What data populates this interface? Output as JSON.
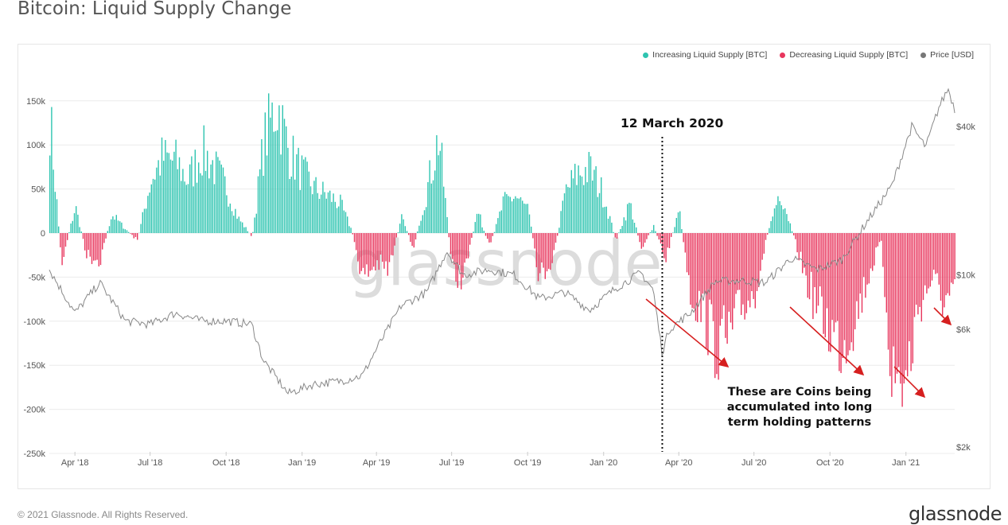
{
  "page": {
    "title": "Bitcoin: Liquid Supply Change",
    "footer_left": "© 2021 Glassnode. All Rights Reserved.",
    "footer_right": "glassnode"
  },
  "chart_data": {
    "type": "bar",
    "title": "Bitcoin: Liquid Supply Change",
    "watermark": "glassnode",
    "grid": true,
    "legend_position": "top-right",
    "legend": [
      {
        "label": "Increasing Liquid Supply [BTC]",
        "color": "#2ec4b0"
      },
      {
        "label": "Decreasing Liquid Supply [BTC]",
        "color": "#e8365d"
      },
      {
        "label": "Price [USD]",
        "color": "#777777"
      }
    ],
    "x_ticks": [
      "Apr '18",
      "Jul '18",
      "Oct '18",
      "Jan '19",
      "Apr '19",
      "Jul '19",
      "Oct '19",
      "Jan '20",
      "Apr '20",
      "Jul '20",
      "Oct '20",
      "Jan '21"
    ],
    "y_left": {
      "ticks": [
        "150k",
        "100k",
        "50k",
        "0",
        "-50k",
        "-100k",
        "-150k",
        "-200k",
        "-250k"
      ],
      "tick_values": [
        150000,
        100000,
        50000,
        0,
        -50000,
        -100000,
        -150000,
        -200000,
        -250000
      ],
      "range": [
        -250000,
        175000
      ]
    },
    "y_right": {
      "ticks": [
        "$40k",
        "$10k",
        "$6k",
        "$2k"
      ],
      "tick_values": [
        40000,
        10000,
        6000,
        2000
      ],
      "scale": "log"
    },
    "series": [
      {
        "name": "Liquid Supply Change [BTC]",
        "type": "bar",
        "positive_color": "#2ec4b0",
        "negative_color": "#e8365d",
        "x": [
          "2018-03-01",
          "2018-03-15",
          "2018-04-01",
          "2018-04-15",
          "2018-05-01",
          "2018-05-15",
          "2018-06-01",
          "2018-06-15",
          "2018-07-01",
          "2018-07-15",
          "2018-08-01",
          "2018-08-15",
          "2018-09-01",
          "2018-09-15",
          "2018-10-01",
          "2018-10-15",
          "2018-11-01",
          "2018-11-15",
          "2018-12-01",
          "2018-12-15",
          "2019-01-01",
          "2019-01-15",
          "2019-02-01",
          "2019-02-15",
          "2019-03-01",
          "2019-03-15",
          "2019-04-01",
          "2019-04-15",
          "2019-05-01",
          "2019-05-15",
          "2019-06-01",
          "2019-06-15",
          "2019-07-01",
          "2019-07-15",
          "2019-08-01",
          "2019-08-15",
          "2019-09-01",
          "2019-09-15",
          "2019-10-01",
          "2019-10-15",
          "2019-11-01",
          "2019-11-15",
          "2019-12-01",
          "2019-12-15",
          "2020-01-01",
          "2020-01-15",
          "2020-02-01",
          "2020-02-15",
          "2020-03-01",
          "2020-03-15",
          "2020-04-01",
          "2020-04-15",
          "2020-05-01",
          "2020-05-15",
          "2020-06-01",
          "2020-06-15",
          "2020-07-01",
          "2020-07-15",
          "2020-08-01",
          "2020-08-15",
          "2020-09-01",
          "2020-09-15",
          "2020-10-01",
          "2020-10-15",
          "2020-11-01",
          "2020-11-15",
          "2020-12-01",
          "2020-12-15",
          "2021-01-01",
          "2021-01-15",
          "2021-02-01",
          "2021-02-15"
        ],
        "values": [
          160000,
          -40000,
          35000,
          -30000,
          -35000,
          25000,
          5000,
          -10000,
          70000,
          100000,
          95000,
          70000,
          110000,
          90000,
          60000,
          20000,
          -5000,
          120000,
          175000,
          110000,
          80000,
          60000,
          50000,
          40000,
          5000,
          -60000,
          -40000,
          -50000,
          20000,
          -20000,
          60000,
          130000,
          -50000,
          -60000,
          30000,
          -20000,
          40000,
          50000,
          30000,
          -60000,
          -30000,
          55000,
          80000,
          85000,
          50000,
          -10000,
          40000,
          -20000,
          10000,
          -35000,
          30000,
          -80000,
          -110000,
          -150000,
          -140000,
          -100000,
          -80000,
          -10000,
          60000,
          5000,
          -60000,
          -100000,
          -130000,
          -150000,
          -110000,
          -60000,
          -10000,
          -190000,
          -200000,
          -100000,
          -60000,
          -90000
        ]
      },
      {
        "name": "Price [USD]",
        "type": "line",
        "axis": "right",
        "color": "#888888",
        "x": [
          "2018-03-01",
          "2018-04-01",
          "2018-05-01",
          "2018-06-01",
          "2018-07-01",
          "2018-08-01",
          "2018-09-01",
          "2018-10-01",
          "2018-11-01",
          "2018-11-15",
          "2018-12-15",
          "2019-01-15",
          "2019-02-15",
          "2019-03-15",
          "2019-04-01",
          "2019-05-01",
          "2019-06-01",
          "2019-06-25",
          "2019-07-15",
          "2019-08-15",
          "2019-09-15",
          "2019-10-15",
          "2019-11-15",
          "2019-12-15",
          "2020-01-15",
          "2020-02-15",
          "2020-03-01",
          "2020-03-12",
          "2020-03-20",
          "2020-04-15",
          "2020-05-15",
          "2020-06-15",
          "2020-07-15",
          "2020-08-15",
          "2020-09-15",
          "2020-10-15",
          "2020-11-15",
          "2020-12-15",
          "2021-01-08",
          "2021-01-25",
          "2021-02-10",
          "2021-02-21",
          "2021-03-01"
        ],
        "values": [
          10500,
          7000,
          9300,
          6500,
          6300,
          7000,
          6500,
          6500,
          6300,
          4500,
          3300,
          3600,
          3700,
          3900,
          5000,
          7500,
          8500,
          12500,
          10000,
          10500,
          10000,
          8000,
          8500,
          7200,
          8800,
          10200,
          8700,
          4800,
          6000,
          7000,
          9400,
          9500,
          9300,
          11700,
          10500,
          11500,
          16500,
          23000,
          40000,
          33000,
          48000,
          57000,
          47000
        ]
      }
    ],
    "annotations": [
      {
        "text": "12 March 2020",
        "x": "2020-03-12",
        "style": "vertical-dotted-line"
      },
      {
        "text": "These are Coins being accumulated into long term holding patterns",
        "style": "callout-with-red-arrows"
      }
    ]
  }
}
